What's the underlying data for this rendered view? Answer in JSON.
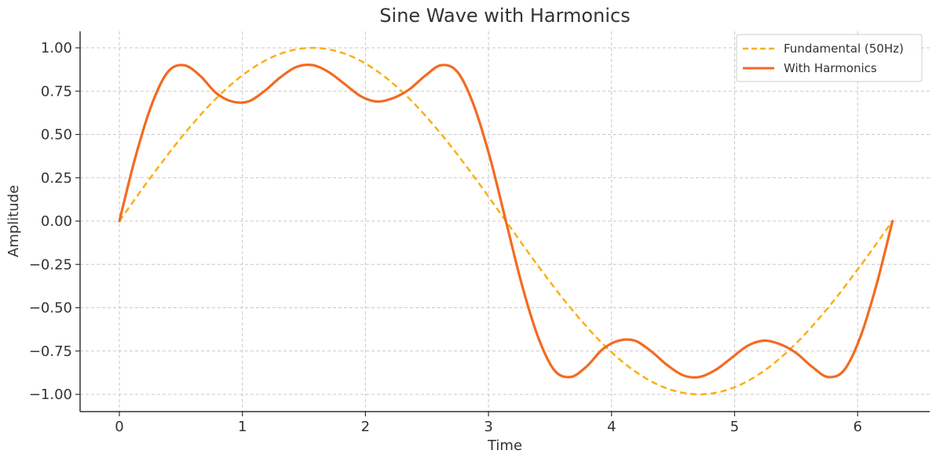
{
  "chart_data": {
    "type": "line",
    "title": "Sine Wave with Harmonics",
    "xlabel": "Time",
    "ylabel": "Amplitude",
    "xlim": [
      -0.31,
      6.6
    ],
    "ylim": [
      -1.1,
      1.1
    ],
    "x_ticks": [
      0,
      1,
      2,
      3,
      4,
      5,
      6
    ],
    "x_tick_labels": [
      "0",
      "1",
      "2",
      "3",
      "4",
      "5",
      "6"
    ],
    "y_ticks": [
      1.0,
      0.75,
      0.5,
      0.25,
      0.0,
      -0.25,
      -0.5,
      -0.75,
      -1.0
    ],
    "y_tick_labels": [
      "1.00",
      "0.75",
      "0.50",
      "0.25",
      "0.00",
      "−0.25",
      "−0.50",
      "−0.75",
      "−1.00"
    ],
    "grid": true,
    "legend_position": "top-right",
    "series": [
      {
        "name": "Fundamental (50Hz)",
        "color": "#F9B016",
        "style": "dashed",
        "x": [
          0.0,
          0.2618,
          0.5236,
          0.7854,
          1.0472,
          1.309,
          1.5708,
          1.8326,
          2.0944,
          2.3562,
          2.618,
          2.8798,
          3.1416,
          3.4034,
          3.6652,
          3.927,
          4.1888,
          4.4506,
          4.7124,
          4.9742,
          5.236,
          5.4978,
          5.7596,
          6.0214,
          6.2832
        ],
        "y": [
          0.0,
          0.259,
          0.5,
          0.707,
          0.866,
          0.966,
          1.0,
          0.966,
          0.866,
          0.707,
          0.5,
          0.259,
          0.0,
          -0.259,
          -0.5,
          -0.707,
          -0.866,
          -0.966,
          -1.0,
          -0.966,
          -0.866,
          -0.707,
          -0.5,
          -0.259,
          0.0
        ]
      },
      {
        "name": "With Harmonics",
        "color": "#F26B21",
        "style": "solid",
        "x": [
          0.0,
          0.1309,
          0.2618,
          0.3927,
          0.5236,
          0.6545,
          0.7854,
          0.9163,
          1.0472,
          1.1781,
          1.309,
          1.4399,
          1.5708,
          1.7017,
          1.8326,
          1.9635,
          2.0944,
          2.2253,
          2.3562,
          2.4871,
          2.618,
          2.7489,
          2.8798,
          3.0107,
          3.1416,
          3.2725,
          3.4034,
          3.5343,
          3.6652,
          3.7961,
          3.927,
          4.0579,
          4.1888,
          4.3197,
          4.4506,
          4.5815,
          4.7124,
          4.8433,
          4.9742,
          5.1051,
          5.236,
          5.3669,
          5.4978,
          5.6287,
          5.7596,
          5.8905,
          6.0214,
          6.1523,
          6.2832
        ],
        "y": [
          0.0,
          0.37,
          0.67,
          0.86,
          0.9,
          0.84,
          0.74,
          0.69,
          0.69,
          0.75,
          0.83,
          0.89,
          0.9,
          0.86,
          0.79,
          0.72,
          0.69,
          0.71,
          0.76,
          0.84,
          0.9,
          0.86,
          0.67,
          0.37,
          0.0,
          -0.37,
          -0.67,
          -0.86,
          -0.9,
          -0.84,
          -0.74,
          -0.69,
          -0.69,
          -0.75,
          -0.83,
          -0.89,
          -0.9,
          -0.86,
          -0.79,
          -0.72,
          -0.69,
          -0.71,
          -0.76,
          -0.84,
          -0.9,
          -0.86,
          -0.67,
          -0.37,
          0.0
        ]
      }
    ]
  }
}
